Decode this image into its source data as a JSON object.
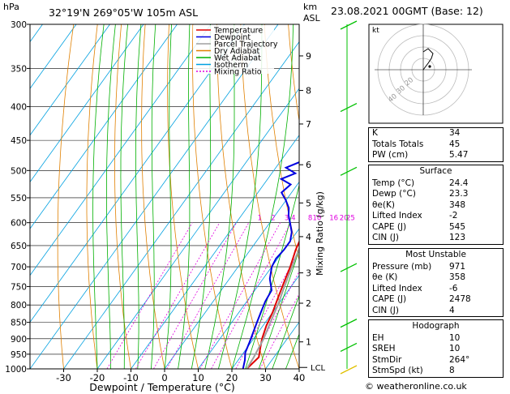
{
  "header": {
    "hpa_unit": "hPa",
    "location": "32°19'N  269°05'W  105m  ASL",
    "km_unit": "km",
    "asl_unit": "ASL",
    "datetime": "23.08.2021  00GMT  (Base: 12)"
  },
  "footer": {
    "copyright": "© weatheronline.co.uk"
  },
  "chart_data": {
    "type": "line",
    "title": "",
    "xlabel": "Dewpoint / Temperature (°C)",
    "ylabel": "hPa",
    "mixing_ratio_label": "Mixing Ratio (g/kg)",
    "xlim": [
      -40,
      40
    ],
    "ylim": [
      1000,
      300
    ],
    "x_ticks": [
      -30,
      -20,
      -10,
      0,
      10,
      20,
      30,
      40
    ],
    "pressure_levels": [
      300,
      350,
      400,
      450,
      500,
      550,
      600,
      650,
      700,
      750,
      800,
      850,
      900,
      950,
      1000
    ],
    "km_ticks": [
      {
        "label": "9",
        "p": 335
      },
      {
        "label": "8",
        "p": 378
      },
      {
        "label": "7",
        "p": 425
      },
      {
        "label": "6",
        "p": 490
      },
      {
        "label": "5",
        "p": 560
      },
      {
        "label": "4",
        "p": 630
      },
      {
        "label": "3",
        "p": 715
      },
      {
        "label": "2",
        "p": 795
      },
      {
        "label": "1",
        "p": 910
      }
    ],
    "lcl_label": "LCL",
    "lcl_p": 995,
    "mixing_ratio_values": [
      "1",
      "2",
      "3",
      "4",
      "8",
      "10",
      "16",
      "20",
      "25"
    ],
    "mixing_ratio_x_at_600": [
      -3,
      1,
      5,
      7,
      12,
      14,
      19,
      22,
      24
    ],
    "legend": [
      {
        "name": "Temperature",
        "color": "#e00000"
      },
      {
        "name": "Dewpoint",
        "color": "#0000e0"
      },
      {
        "name": "Parcel Trajectory",
        "color": "#a0a0a0"
      },
      {
        "name": "Dry Adiabat",
        "color": "#e08000"
      },
      {
        "name": "Wet Adiabat",
        "color": "#00b000"
      },
      {
        "name": "Isotherm",
        "color": "#00a0e0"
      },
      {
        "name": "Mixing Ratio",
        "color": "#e000e0"
      }
    ],
    "series": [
      {
        "name": "Temperature",
        "color": "#e00000",
        "points": [
          [
            24.4,
            1000
          ],
          [
            25.5,
            960
          ],
          [
            24,
            930
          ],
          [
            22.5,
            900
          ],
          [
            21,
            860
          ],
          [
            20,
            820
          ],
          [
            18.5,
            780
          ],
          [
            17,
            740
          ],
          [
            15.5,
            700
          ],
          [
            13.5,
            660
          ],
          [
            12,
            620
          ],
          [
            10.5,
            580
          ],
          [
            9,
            550
          ],
          [
            7,
            520
          ],
          [
            5,
            490
          ],
          [
            3,
            460
          ],
          [
            1,
            430
          ],
          [
            -2,
            400
          ],
          [
            -5,
            370
          ],
          [
            -8,
            350
          ]
        ]
      },
      {
        "name": "Dewpoint",
        "color": "#0000e0",
        "points": [
          [
            23.3,
            1000
          ],
          [
            22,
            970
          ],
          [
            20.5,
            945
          ],
          [
            19.5,
            910
          ],
          [
            18.5,
            880
          ],
          [
            17.5,
            850
          ],
          [
            16.5,
            820
          ],
          [
            15.5,
            790
          ],
          [
            15,
            760
          ],
          [
            12,
            730
          ],
          [
            10,
            700
          ],
          [
            9.5,
            680
          ],
          [
            10,
            660
          ],
          [
            10,
            640
          ],
          [
            8.5,
            620
          ],
          [
            6,
            600
          ],
          [
            4,
            585
          ],
          [
            2.5,
            570
          ],
          [
            0,
            555
          ],
          [
            -3,
            540
          ],
          [
            -2,
            525
          ],
          [
            -6,
            515
          ],
          [
            -3,
            505
          ],
          [
            -7,
            495
          ],
          [
            -4,
            485
          ],
          [
            -2,
            475
          ],
          [
            -4,
            465
          ],
          [
            -2,
            455
          ],
          [
            -5,
            445
          ],
          [
            -3,
            435
          ],
          [
            -3,
            420
          ],
          [
            -5,
            405
          ],
          [
            -6,
            390
          ],
          [
            -8,
            370
          ],
          [
            -10,
            355
          ],
          [
            -12,
            340
          ],
          [
            -14,
            320
          ],
          [
            -16,
            300
          ]
        ]
      },
      {
        "name": "Parcel Trajectory",
        "color": "#a0a0a0",
        "points": [
          [
            24.4,
            1000
          ],
          [
            24,
            960
          ],
          [
            23,
            900
          ],
          [
            21.5,
            850
          ],
          [
            20,
            800
          ],
          [
            18,
            750
          ],
          [
            16,
            700
          ],
          [
            14,
            650
          ],
          [
            12,
            600
          ],
          [
            10,
            560
          ],
          [
            8,
            520
          ],
          [
            6,
            490
          ],
          [
            3,
            450
          ],
          [
            0,
            420
          ],
          [
            -3,
            390
          ],
          [
            -6,
            360
          ],
          [
            -9,
            340
          ]
        ]
      }
    ],
    "winds": [
      {
        "p": 300,
        "speed_kt": 10
      },
      {
        "p": 400,
        "speed_kt": 10
      },
      {
        "p": 500,
        "speed_kt": 10
      },
      {
        "p": 700,
        "speed_kt": 10
      },
      {
        "p": 850,
        "speed_kt": 10
      },
      {
        "p": 925,
        "speed_kt": 10
      },
      {
        "p": 1000,
        "speed_kt": 5
      }
    ]
  },
  "hodograph": {
    "unit": "kt",
    "ring_labels": [
      "20",
      "30",
      "40"
    ],
    "trace": [
      [
        0,
        0
      ],
      [
        3,
        4
      ],
      [
        5,
        7
      ],
      [
        6,
        10
      ],
      [
        3,
        13
      ],
      [
        0,
        11
      ]
    ]
  },
  "indices": {
    "rows": [
      {
        "label": "K",
        "value": "34"
      },
      {
        "label": "Totals Totals",
        "value": "45"
      },
      {
        "label": "PW (cm)",
        "value": "5.47"
      }
    ]
  },
  "surface": {
    "title": "Surface",
    "rows": [
      {
        "label": "Temp (°C)",
        "value": "24.4"
      },
      {
        "label": "Dewp (°C)",
        "value": "23.3"
      },
      {
        "label": "θe(K)",
        "value": "348"
      },
      {
        "label": "Lifted Index",
        "value": "-2"
      },
      {
        "label": "CAPE (J)",
        "value": "545"
      },
      {
        "label": "CIN (J)",
        "value": "123"
      }
    ]
  },
  "most_unstable": {
    "title": "Most Unstable",
    "rows": [
      {
        "label": "Pressure (mb)",
        "value": "971"
      },
      {
        "label": "θe (K)",
        "value": "358"
      },
      {
        "label": "Lifted Index",
        "value": "-6"
      },
      {
        "label": "CAPE (J)",
        "value": "2478"
      },
      {
        "label": "CIN (J)",
        "value": "4"
      }
    ]
  },
  "hodograph_panel": {
    "title": "Hodograph",
    "rows": [
      {
        "label": "EH",
        "value": "10"
      },
      {
        "label": "SREH",
        "value": "10"
      },
      {
        "label": "StmDir",
        "value": "264°"
      },
      {
        "label": "StmSpd (kt)",
        "value": "8"
      }
    ]
  }
}
